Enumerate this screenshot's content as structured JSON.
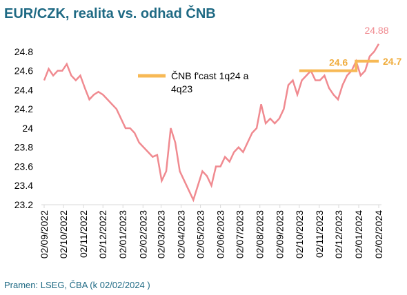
{
  "chart_data": {
    "type": "line",
    "title": "EUR/CZK, realita vs. odhad ČNB",
    "source": "Pramen: LSEG, ČBA (k 02/02/2024 )",
    "series": [
      {
        "name": "EUR/CZK",
        "color": "#f08a90",
        "x": [
          "2022-09-02",
          "2022-09-09",
          "2022-09-16",
          "2022-09-23",
          "2022-09-30",
          "2022-10-07",
          "2022-10-14",
          "2022-10-21",
          "2022-10-28",
          "2022-11-04",
          "2022-11-11",
          "2022-11-18",
          "2022-11-25",
          "2022-12-02",
          "2022-12-09",
          "2022-12-16",
          "2022-12-23",
          "2022-12-30",
          "2023-01-06",
          "2023-01-13",
          "2023-01-20",
          "2023-01-27",
          "2023-02-03",
          "2023-02-10",
          "2023-02-17",
          "2023-02-24",
          "2023-03-03",
          "2023-03-10",
          "2023-03-17",
          "2023-03-24",
          "2023-03-31",
          "2023-04-07",
          "2023-04-14",
          "2023-04-21",
          "2023-04-28",
          "2023-05-05",
          "2023-05-12",
          "2023-05-19",
          "2023-05-26",
          "2023-06-02",
          "2023-06-09",
          "2023-06-16",
          "2023-06-23",
          "2023-06-30",
          "2023-07-07",
          "2023-07-14",
          "2023-07-21",
          "2023-07-28",
          "2023-08-04",
          "2023-08-11",
          "2023-08-18",
          "2023-08-25",
          "2023-09-01",
          "2023-09-08",
          "2023-09-15",
          "2023-09-22",
          "2023-09-29",
          "2023-10-06",
          "2023-10-13",
          "2023-10-20",
          "2023-10-27",
          "2023-11-03",
          "2023-11-10",
          "2023-11-17",
          "2023-11-24",
          "2023-12-01",
          "2023-12-08",
          "2023-12-15",
          "2023-12-22",
          "2023-12-29",
          "2024-01-05",
          "2024-01-12",
          "2024-01-19",
          "2024-01-26",
          "2024-02-02"
        ],
        "values": [
          24.5,
          24.62,
          24.55,
          24.6,
          24.6,
          24.67,
          24.55,
          24.5,
          24.55,
          24.42,
          24.3,
          24.35,
          24.38,
          24.35,
          24.3,
          24.25,
          24.2,
          24.1,
          24.0,
          24.0,
          23.95,
          23.85,
          23.8,
          23.75,
          23.7,
          23.72,
          23.45,
          23.55,
          24.0,
          23.85,
          23.55,
          23.45,
          23.35,
          23.25,
          23.4,
          23.55,
          23.5,
          23.4,
          23.6,
          23.6,
          23.7,
          23.65,
          23.75,
          23.8,
          23.75,
          23.85,
          23.95,
          24.0,
          24.25,
          24.05,
          24.1,
          24.05,
          24.1,
          24.2,
          24.45,
          24.5,
          24.35,
          24.5,
          24.55,
          24.6,
          24.5,
          24.5,
          24.55,
          24.42,
          24.35,
          24.3,
          24.45,
          24.55,
          24.6,
          24.7,
          24.55,
          24.6,
          24.75,
          24.8,
          24.88
        ]
      },
      {
        "name": "ČNB f'cast 1q24 a 4q23",
        "color": "#f7b955",
        "x": [
          "2023-10-02",
          "2023-12-29",
          "2023-12-29",
          "2024-02-02"
        ],
        "values": [
          24.6,
          24.6,
          24.7,
          24.7
        ]
      }
    ],
    "xlim": [
      "2022-09-02",
      "2024-02-02"
    ],
    "xticks": [
      {
        "value": "2022-09-02",
        "label": "02/09/2022"
      },
      {
        "value": "2022-10-02",
        "label": "02/10/2022"
      },
      {
        "value": "2022-11-02",
        "label": "02/11/2022"
      },
      {
        "value": "2022-12-02",
        "label": "02/12/2022"
      },
      {
        "value": "2023-01-02",
        "label": "02/01/2023"
      },
      {
        "value": "2023-02-02",
        "label": "02/02/2023"
      },
      {
        "value": "2023-03-02",
        "label": "02/03/2023"
      },
      {
        "value": "2023-04-02",
        "label": "02/04/2023"
      },
      {
        "value": "2023-05-02",
        "label": "02/05/2023"
      },
      {
        "value": "2023-06-02",
        "label": "02/06/2023"
      },
      {
        "value": "2023-07-02",
        "label": "02/07/2023"
      },
      {
        "value": "2023-08-02",
        "label": "02/08/2023"
      },
      {
        "value": "2023-09-02",
        "label": "02/09/2023"
      },
      {
        "value": "2023-10-02",
        "label": "02/10/2023"
      },
      {
        "value": "2023-11-02",
        "label": "02/11/2023"
      },
      {
        "value": "2023-12-02",
        "label": "02/12/2023"
      },
      {
        "value": "2024-01-02",
        "label": "02/01/2024"
      },
      {
        "value": "2024-02-02",
        "label": "02/02/2024"
      }
    ],
    "ylim": [
      23.2,
      24.9
    ],
    "yticks": [
      23.2,
      23.4,
      23.6,
      23.8,
      24,
      24.2,
      24.4,
      24.6,
      24.8
    ]
  }
}
